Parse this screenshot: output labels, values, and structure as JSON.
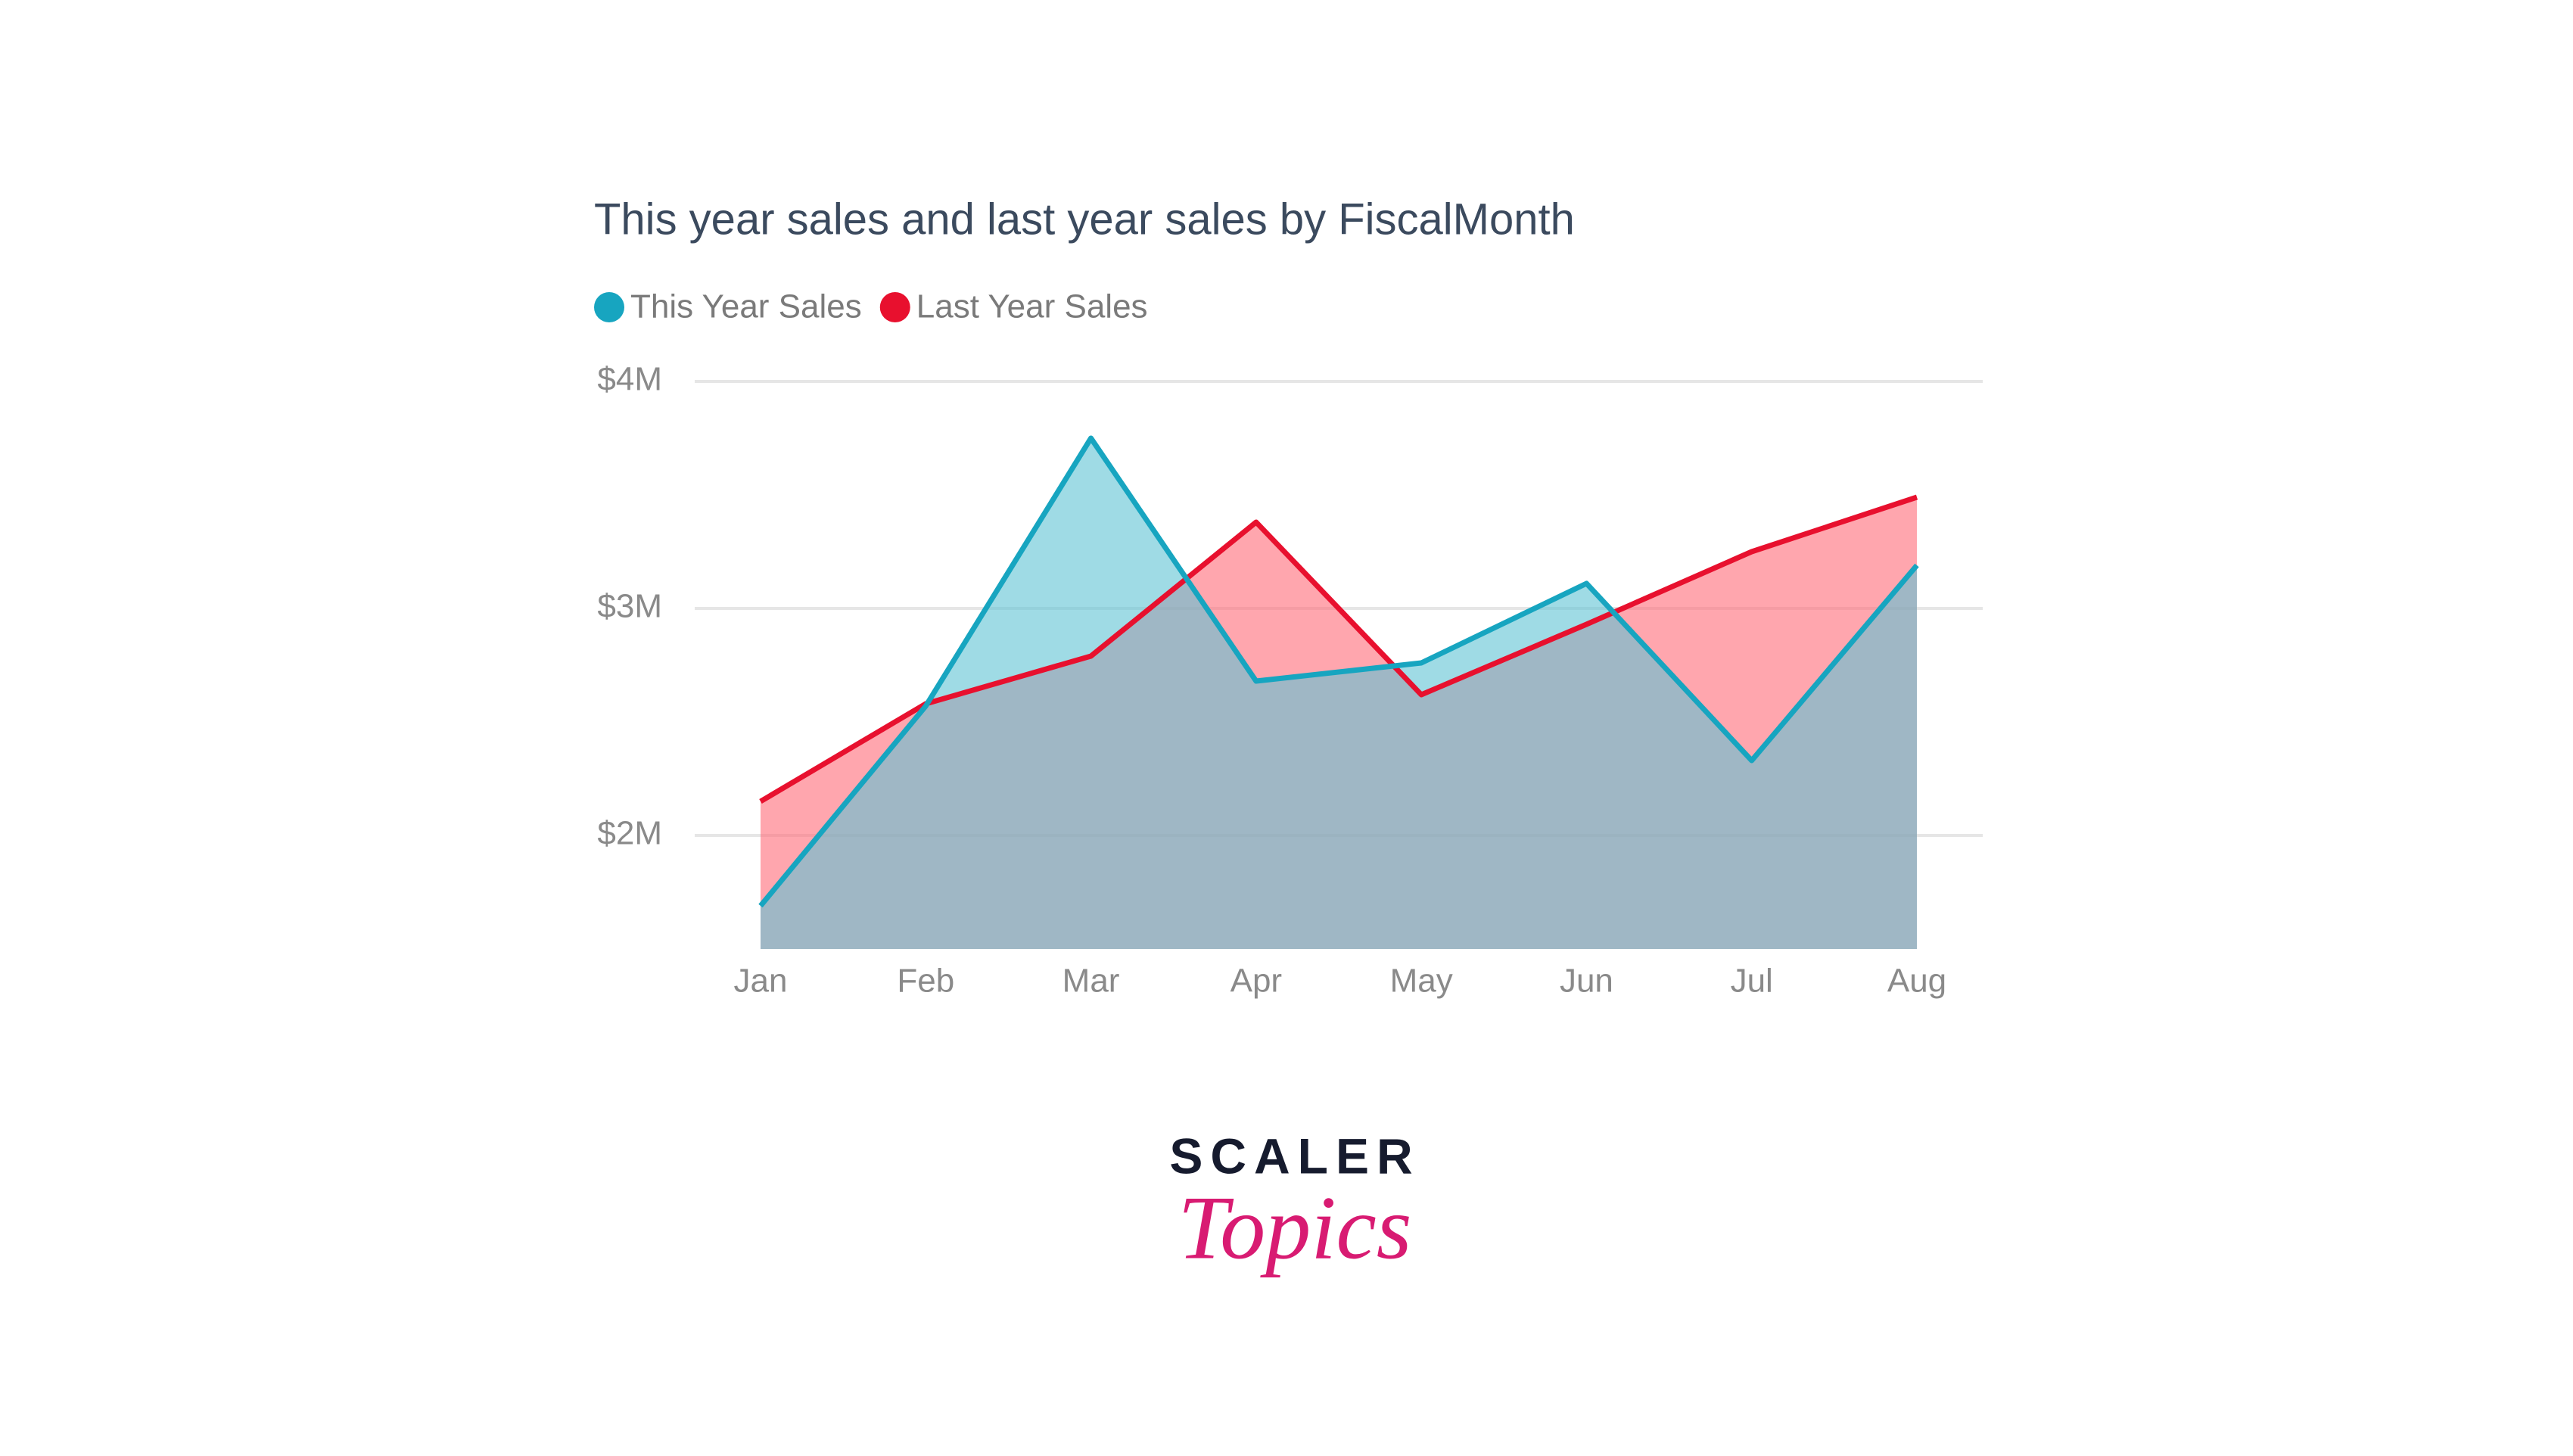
{
  "chart_data": {
    "type": "area",
    "title": "This year sales and last year sales by FiscalMonth",
    "categories": [
      "Jan",
      "Feb",
      "Mar",
      "Apr",
      "May",
      "Jun",
      "Jul",
      "Aug"
    ],
    "series": [
      {
        "name": "This Year Sales",
        "color": "#17a5c0",
        "fill": "#5fc3d4",
        "values": [
          1690000,
          2570000,
          3750000,
          2680000,
          2760000,
          3110000,
          2330000,
          3190000
        ]
      },
      {
        "name": "Last Year Sales",
        "color": "#e8102e",
        "fill": "#ff6b78",
        "values": [
          2150000,
          2580000,
          2790000,
          3380000,
          2620000,
          2930000,
          3250000,
          3490000
        ]
      }
    ],
    "ylim": [
      1500000,
      4000000
    ],
    "yticks": [
      {
        "value": 2000000,
        "label": "$2M"
      },
      {
        "value": 3000000,
        "label": "$3M"
      },
      {
        "value": 4000000,
        "label": "$4M"
      }
    ],
    "grid": true
  },
  "logo": {
    "line1": "SCALER",
    "line2": "Topics"
  }
}
